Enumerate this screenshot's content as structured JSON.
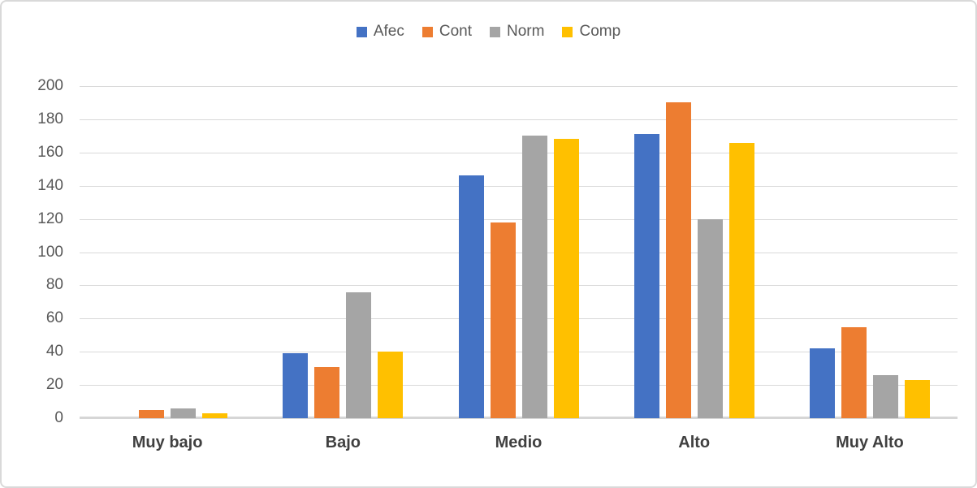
{
  "frame": {
    "background_color": "#FFFFFF",
    "border_color": "#D9D9D9"
  },
  "chart_data": {
    "type": "bar",
    "title": "",
    "categories": [
      "Muy bajo",
      "Bajo",
      "Medio",
      "Alto",
      "Muy Alto"
    ],
    "series": [
      {
        "name": "Afec",
        "color": "#4472C4",
        "values": [
          0,
          39,
          146,
          171,
          42
        ]
      },
      {
        "name": "Cont",
        "color": "#ED7D31",
        "values": [
          5,
          31,
          118,
          190,
          55
        ]
      },
      {
        "name": "Norm",
        "color": "#A5A5A5",
        "values": [
          6,
          76,
          170,
          120,
          26
        ]
      },
      {
        "name": "Comp",
        "color": "#FFC000",
        "values": [
          3,
          40,
          168,
          166,
          23
        ]
      }
    ],
    "ylim": [
      0,
      200
    ],
    "ytick_step": 20,
    "yticks": [
      0,
      20,
      40,
      60,
      80,
      100,
      120,
      140,
      160,
      180,
      200
    ],
    "grid": "horizontal",
    "gridline_color": "#D9D9D9",
    "axis_line_color": "#D6D6D6",
    "axis_tick_text_color": "#595959",
    "category_label_color": "#404040",
    "legend_position": "top-center",
    "legend_text_color": "#595959"
  }
}
